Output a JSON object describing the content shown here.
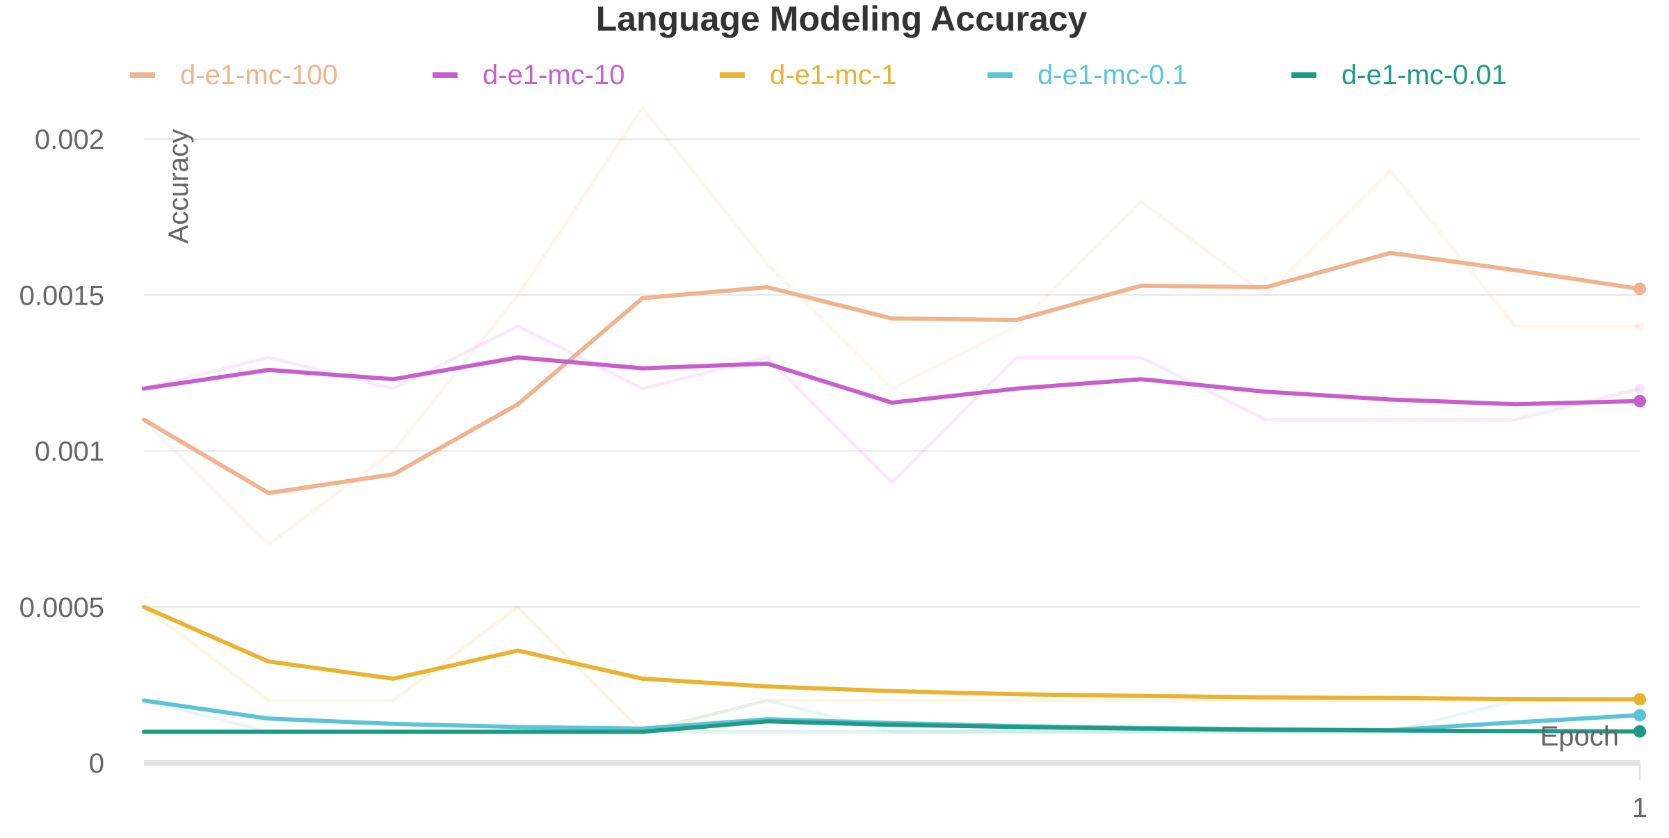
{
  "chart_data": {
    "type": "line",
    "title": "Language Modeling Accuracy",
    "xlabel": "Epoch",
    "ylabel": "Accuracy",
    "ylim": [
      0,
      0.002
    ],
    "yticks": [
      {
        "value": 0,
        "label": "0"
      },
      {
        "value": 0.0005,
        "label": "0.0005"
      },
      {
        "value": 0.001,
        "label": "0.001"
      },
      {
        "value": 0.0015,
        "label": "0.0015"
      },
      {
        "value": 0.002,
        "label": "0.002"
      }
    ],
    "xticks": [
      {
        "value": 1,
        "label": "1"
      }
    ],
    "xlim": [
      0,
      1
    ],
    "grid": true,
    "legend_position": "top",
    "x": [
      0,
      0.0833,
      0.1667,
      0.25,
      0.3333,
      0.4167,
      0.5,
      0.5833,
      0.6667,
      0.75,
      0.8333,
      0.9167,
      1
    ],
    "series": [
      {
        "name": "d-e1-mc-100",
        "color": "#efb38e",
        "values": [
          0.0011,
          0.000865,
          0.000925,
          0.00115,
          0.00149,
          0.001525,
          0.001425,
          0.00142,
          0.00153,
          0.001525,
          0.001635,
          0.00158,
          0.00152
        ],
        "raw": [
          0.0011,
          0.0007,
          0.001,
          0.0015,
          0.0021,
          0.0016,
          0.0012,
          0.0014,
          0.0018,
          0.0015,
          0.0019,
          0.0014,
          0.0014
        ]
      },
      {
        "name": "d-e1-mc-10",
        "color": "#c85ecb",
        "values": [
          0.0012,
          0.00126,
          0.00123,
          0.0013,
          0.001265,
          0.00128,
          0.001155,
          0.0012,
          0.00123,
          0.00119,
          0.001165,
          0.00115,
          0.00116
        ],
        "raw": [
          0.0012,
          0.0013,
          0.0012,
          0.0014,
          0.0012,
          0.0013,
          0.0009,
          0.0013,
          0.0013,
          0.0011,
          0.0011,
          0.0011,
          0.0012
        ]
      },
      {
        "name": "d-e1-mc-1",
        "color": "#eab232",
        "values": [
          0.0005,
          0.000325,
          0.00027,
          0.00036,
          0.00027,
          0.000245,
          0.00023,
          0.00022,
          0.000215,
          0.00021,
          0.000208,
          0.000205,
          0.000204
        ],
        "raw": [
          0.0005,
          0.0002,
          0.0002,
          0.0005,
          0.0001,
          0.0002,
          0.0002,
          0.0002,
          0.0002,
          0.0002,
          0.0002,
          0.0002,
          0.0002
        ]
      },
      {
        "name": "d-e1-mc-0.1",
        "color": "#5bc4d6",
        "values": [
          0.0002,
          0.000142,
          0.000125,
          0.000115,
          0.00011,
          0.00014,
          0.000128,
          0.000118,
          0.000112,
          0.000108,
          0.000105,
          0.00013,
          0.000153
        ],
        "raw": [
          0.0002,
          0.0001,
          0.0001,
          0.0001,
          0.0001,
          0.0002,
          0.0001,
          0.0001,
          0.0001,
          0.0001,
          0.0001,
          0.0002,
          0.0002
        ]
      },
      {
        "name": "d-e1-mc-0.01",
        "color": "#1f9a85",
        "values": [
          0.0001,
          0.0001,
          0.0001,
          0.0001,
          0.0001,
          0.000133,
          0.000122,
          0.000115,
          0.00011,
          0.000106,
          0.000104,
          0.000102,
          0.000101
        ],
        "raw": [
          0.0001,
          0.0001,
          0.0001,
          0.0001,
          0.0001,
          0.0001,
          0.0001,
          0.0001,
          0.0001,
          0.0001,
          0.0001,
          0.0001,
          0.0001
        ]
      }
    ]
  }
}
